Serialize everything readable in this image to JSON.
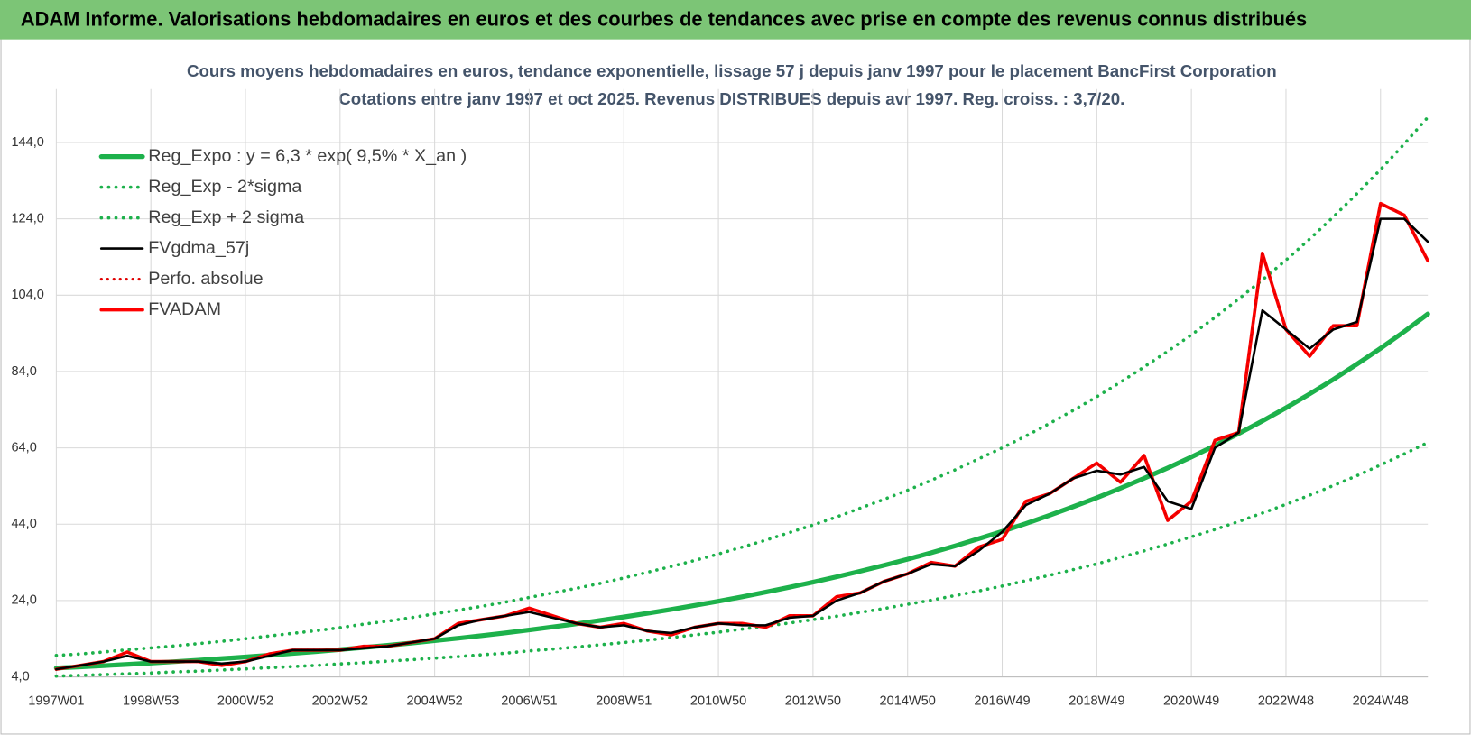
{
  "header": {
    "title": "ADAM Informe. Valorisations hebdomadaires en euros et des courbes de tendances avec prise en compte des revenus connus distribués"
  },
  "chart_data": {
    "type": "line",
    "title": "Cours moyens hebdomadaires en euros, tendance exponentielle, lissage 57 j depuis janv 1997 pour le placement BancFirst Corporation",
    "subtitle": "Cotations entre janv 1997 et oct 2025. Revenus DISTRIBUES depuis avr 1997. Reg. croiss. : 3,7/20.",
    "categories": [
      "1997W01",
      null,
      null,
      null,
      "1998W53",
      null,
      null,
      null,
      "2000W52",
      null,
      null,
      null,
      "2002W52",
      null,
      null,
      null,
      "2004W52",
      null,
      null,
      null,
      "2006W51",
      null,
      null,
      null,
      "2008W51",
      null,
      null,
      null,
      "2010W50",
      null,
      null,
      null,
      "2012W50",
      null,
      null,
      null,
      "2014W50",
      null,
      null,
      null,
      "2016W49",
      null,
      null,
      null,
      "2018W49",
      null,
      null,
      null,
      "2020W49",
      null,
      null,
      null,
      "2022W48",
      null,
      null,
      null,
      "2024W48",
      null,
      null
    ],
    "ylim": [
      4,
      158
    ],
    "yticks": [
      {
        "value": 4,
        "label": "4,0"
      },
      {
        "value": 24,
        "label": "24,0"
      },
      {
        "value": 44,
        "label": "44,0"
      },
      {
        "value": 64,
        "label": "64,0"
      },
      {
        "value": 84,
        "label": "84,0"
      },
      {
        "value": 104,
        "label": "104,0"
      },
      {
        "value": 124,
        "label": "124,0"
      },
      {
        "value": 144,
        "label": "144,0"
      }
    ],
    "grid": true,
    "legend": "top-left",
    "series": [
      {
        "name": "Reg_Expo : y = 6,3 * exp( 9,5% *  X_an )",
        "color": "#1db14b",
        "style": "solid",
        "width": 5,
        "values": [
          6.3,
          6.61,
          6.93,
          7.27,
          7.62,
          7.99,
          8.38,
          8.78,
          9.21,
          9.66,
          10.13,
          10.62,
          11.14,
          11.68,
          12.25,
          12.85,
          13.47,
          14.13,
          14.81,
          15.53,
          16.29,
          17.08,
          17.91,
          18.78,
          19.7,
          20.66,
          21.66,
          22.71,
          23.82,
          24.98,
          26.2,
          27.47,
          28.8,
          30.21,
          31.68,
          33.22,
          34.83,
          36.53,
          38.31,
          40.17,
          42.12,
          44.17,
          46.32,
          48.58,
          50.94,
          53.42,
          56.02,
          58.74,
          61.6,
          64.6,
          67.74,
          71.04,
          74.49,
          78.12,
          81.92,
          85.9,
          90.09,
          94.47,
          99.07
        ]
      },
      {
        "name": "Reg_Exp - 2*sigma",
        "color": "#1db14b",
        "style": "dotted",
        "width": 3.5,
        "values": [
          4.2,
          4.4,
          4.6,
          4.8,
          5.0,
          5.3,
          5.5,
          5.8,
          6.1,
          6.4,
          6.7,
          7.0,
          7.4,
          7.7,
          8.1,
          8.5,
          8.9,
          9.3,
          9.8,
          10.2,
          10.8,
          11.3,
          11.8,
          12.4,
          13.0,
          13.6,
          14.3,
          15.0,
          15.7,
          16.5,
          17.3,
          18.1,
          19.0,
          19.9,
          20.9,
          21.9,
          23.0,
          24.1,
          25.3,
          26.5,
          27.8,
          29.2,
          30.6,
          32.1,
          33.6,
          35.3,
          37.0,
          38.8,
          40.7,
          42.6,
          44.7,
          46.9,
          49.2,
          51.6,
          54.1,
          56.7,
          59.5,
          62.4,
          65.4
        ]
      },
      {
        "name": "Reg_Exp + 2 sigma",
        "color": "#1db14b",
        "style": "dotted",
        "width": 3.5,
        "values": [
          9.6,
          10.0,
          10.5,
          11.1,
          11.6,
          12.1,
          12.7,
          13.3,
          14.0,
          14.7,
          15.4,
          16.1,
          16.9,
          17.8,
          18.6,
          19.5,
          20.5,
          21.5,
          22.5,
          23.6,
          24.8,
          26.0,
          27.2,
          28.5,
          29.9,
          31.4,
          32.9,
          34.5,
          36.2,
          38.0,
          39.8,
          41.8,
          43.8,
          45.9,
          48.2,
          50.5,
          52.9,
          55.5,
          58.2,
          61.1,
          64.0,
          67.1,
          70.4,
          73.8,
          77.4,
          81.2,
          85.2,
          89.3,
          93.6,
          98.2,
          103.0,
          108.0,
          113.2,
          118.7,
          124.5,
          130.6,
          136.9,
          143.6,
          150.6
        ]
      },
      {
        "name": "FVgdma_57j",
        "color": "#000000",
        "style": "solid",
        "width": 2.5,
        "values": [
          6,
          7,
          8,
          9.5,
          8,
          8,
          8,
          7.5,
          8,
          9.5,
          11,
          11,
          11,
          11.5,
          12,
          13,
          14,
          17.5,
          19,
          20,
          21,
          19.5,
          18,
          17,
          17.5,
          16,
          15.5,
          17,
          18,
          17.5,
          17.5,
          19.5,
          20,
          24,
          26,
          29,
          31,
          33.5,
          33,
          37,
          42,
          49,
          52,
          56,
          58,
          57,
          59,
          50,
          48,
          64,
          68,
          100,
          95,
          90,
          95,
          97,
          124,
          124,
          118
        ]
      },
      {
        "name": "Perfo. absolue",
        "color": "#e00000",
        "style": "dotted",
        "width": 3,
        "values": [
          6,
          7,
          8,
          10.5,
          8,
          8,
          8,
          7,
          8,
          10,
          11,
          11,
          11,
          12,
          12,
          13,
          14,
          18,
          19,
          20,
          22,
          20,
          18,
          17,
          18,
          16,
          15,
          17,
          18,
          18,
          17,
          20,
          20,
          25,
          26,
          29,
          31,
          34,
          33,
          38,
          40,
          50,
          52,
          56,
          60,
          55,
          62,
          45,
          50,
          66,
          68,
          115,
          95,
          88,
          96,
          96,
          128,
          125,
          113
        ]
      },
      {
        "name": "FVADAM",
        "color": "#ff0000",
        "style": "solid",
        "width": 3.5,
        "values": [
          6,
          7,
          8,
          10.5,
          8,
          8,
          8,
          7,
          8,
          10,
          11,
          11,
          11,
          12,
          12,
          13,
          14,
          18,
          19,
          20,
          22,
          20,
          18,
          17,
          18,
          16,
          15,
          17,
          18,
          18,
          17,
          20,
          20,
          25,
          26,
          29,
          31,
          34,
          33,
          38,
          40,
          50,
          52,
          56,
          60,
          55,
          62,
          45,
          50,
          66,
          68,
          115,
          95,
          88,
          96,
          96,
          128,
          125,
          113
        ]
      }
    ]
  }
}
